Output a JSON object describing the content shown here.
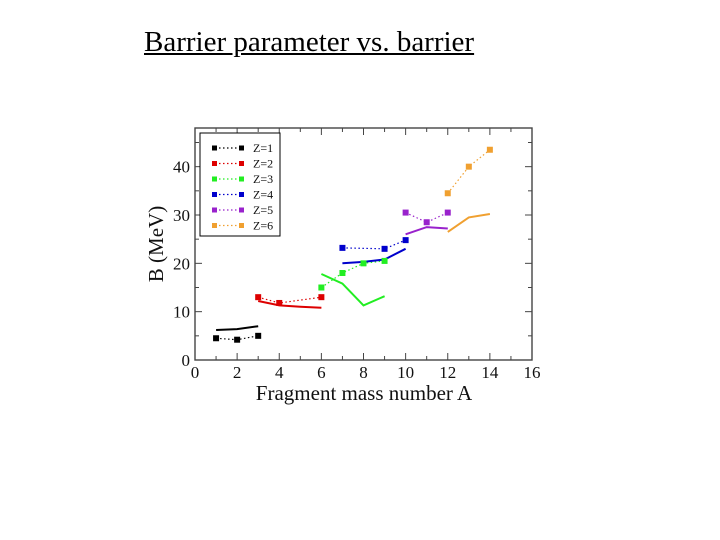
{
  "slide": {
    "title": "Barrier parameter vs. barrier"
  },
  "chart_data": {
    "type": "line",
    "title": "",
    "xlabel": "Fragment mass number A",
    "ylabel": "B (MeV)",
    "xlim": [
      0,
      16
    ],
    "ylim": [
      0,
      48
    ],
    "xticks": [
      0,
      2,
      4,
      6,
      8,
      10,
      12,
      14,
      16
    ],
    "yticks": [
      0,
      10,
      20,
      30,
      40
    ],
    "grid": false,
    "legend_position": "top-left",
    "series": [
      {
        "name": "Z=1",
        "color": "#000000",
        "points_x": [
          1,
          2,
          3
        ],
        "points_y": [
          4.5,
          4.2,
          5.0
        ],
        "curve_x": [
          1,
          2,
          3
        ],
        "curve_y": [
          6.2,
          6.4,
          7.0
        ]
      },
      {
        "name": "Z=2",
        "color": "#dd0000",
        "points_x": [
          3,
          4,
          6
        ],
        "points_y": [
          13.0,
          11.8,
          13.0
        ],
        "curve_x": [
          3,
          4,
          5,
          6
        ],
        "curve_y": [
          12.2,
          11.3,
          11.0,
          10.8
        ]
      },
      {
        "name": "Z=3",
        "color": "#22ee22",
        "points_x": [
          6,
          7,
          8,
          9
        ],
        "points_y": [
          15.0,
          18.0,
          20.0,
          20.5
        ],
        "curve_x": [
          6,
          7,
          8,
          9
        ],
        "curve_y": [
          17.8,
          15.8,
          11.3,
          13.2
        ]
      },
      {
        "name": "Z=4",
        "color": "#0000cc",
        "points_x": [
          7,
          9,
          10
        ],
        "points_y": [
          23.2,
          23.0,
          24.8
        ],
        "curve_x": [
          7,
          8,
          9,
          10
        ],
        "curve_y": [
          20.0,
          20.3,
          20.8,
          23.0
        ]
      },
      {
        "name": "Z=5",
        "color": "#9922cc",
        "points_x": [
          10,
          11,
          12
        ],
        "points_y": [
          30.5,
          28.5,
          30.5
        ],
        "curve_x": [
          10,
          11,
          12
        ],
        "curve_y": [
          26.0,
          27.5,
          27.2
        ]
      },
      {
        "name": "Z=6",
        "color": "#f0a030",
        "points_x": [
          12,
          13,
          14
        ],
        "points_y": [
          34.5,
          40.0,
          43.5
        ],
        "curve_x": [
          12,
          13,
          14
        ],
        "curve_y": [
          26.5,
          29.5,
          30.2
        ]
      }
    ]
  }
}
